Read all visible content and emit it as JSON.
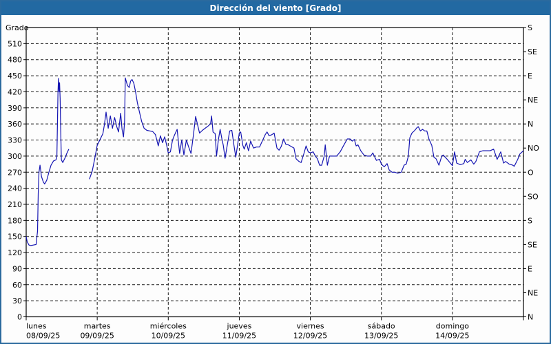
{
  "title": "Dirección del viento [Grado]",
  "colors": {
    "titlebar_bg": "#2269a2",
    "title_text": "#ffffff",
    "frame_border": "#2b6a9e",
    "plot_background": "#fdfdfd",
    "line_color": "#1515b2",
    "grid_color": "#1a1a1a",
    "axis_color": "#000000"
  },
  "chart_data": {
    "type": "line",
    "title": "Dirección del viento [Grado]",
    "ylabel": "Grado",
    "ylim": [
      0,
      540
    ],
    "x_range_days": [
      0,
      7
    ],
    "grid": true,
    "legend_position": "none",
    "left_axis_ticks": [
      0,
      30,
      60,
      90,
      120,
      150,
      180,
      210,
      240,
      270,
      300,
      330,
      360,
      390,
      420,
      450,
      480,
      510
    ],
    "right_axis_ticks": [
      {
        "deg": 540,
        "label": "S"
      },
      {
        "deg": 495,
        "label": "SE"
      },
      {
        "deg": 450,
        "label": "E"
      },
      {
        "deg": 405,
        "label": "NE"
      },
      {
        "deg": 360,
        "label": "N"
      },
      {
        "deg": 315,
        "label": "NO"
      },
      {
        "deg": 270,
        "label": "O"
      },
      {
        "deg": 225,
        "label": "SO"
      },
      {
        "deg": 180,
        "label": "S"
      },
      {
        "deg": 135,
        "label": "SE"
      },
      {
        "deg": 90,
        "label": "E"
      },
      {
        "deg": 45,
        "label": "NE"
      },
      {
        "deg": 0,
        "label": "N"
      }
    ],
    "x_days": [
      {
        "name": "lunes",
        "date": "08/09/25"
      },
      {
        "name": "martes",
        "date": "09/09/25"
      },
      {
        "name": "miércoles",
        "date": "10/09/25"
      },
      {
        "name": "jueves",
        "date": "11/09/25"
      },
      {
        "name": "viernes",
        "date": "12/09/25"
      },
      {
        "name": "sábado",
        "date": "13/09/25"
      },
      {
        "name": "domingo",
        "date": "14/09/25"
      }
    ],
    "series": [
      {
        "name": "Dirección del viento",
        "unit": "Grado",
        "color": "#1515b2",
        "points": [
          [
            0.0,
            150
          ],
          [
            0.015,
            140
          ],
          [
            0.04,
            134
          ],
          [
            0.065,
            133
          ],
          [
            0.1,
            134
          ],
          [
            0.14,
            135
          ],
          [
            0.16,
            160
          ],
          [
            0.17,
            230
          ],
          [
            0.18,
            270
          ],
          [
            0.195,
            283
          ],
          [
            0.215,
            262
          ],
          [
            0.24,
            252
          ],
          [
            0.26,
            248
          ],
          [
            0.29,
            255
          ],
          [
            0.32,
            270
          ],
          [
            0.35,
            283
          ],
          [
            0.385,
            291
          ],
          [
            0.42,
            293
          ],
          [
            0.432,
            300
          ],
          [
            0.44,
            360
          ],
          [
            0.448,
            420
          ],
          [
            0.455,
            445
          ],
          [
            0.463,
            420
          ],
          [
            0.47,
            437
          ],
          [
            0.478,
            408
          ],
          [
            0.487,
            345
          ],
          [
            0.495,
            293
          ],
          [
            0.515,
            288
          ],
          [
            0.545,
            296
          ],
          [
            0.575,
            306
          ],
          [
            0.6,
            313
          ],
          null,
          [
            0.89,
            257
          ],
          [
            0.93,
            272
          ],
          [
            0.965,
            295
          ],
          [
            1.0,
            320
          ],
          [
            1.04,
            331
          ],
          [
            1.08,
            342
          ],
          [
            1.1,
            358
          ],
          [
            1.125,
            382
          ],
          [
            1.155,
            352
          ],
          [
            1.185,
            375
          ],
          [
            1.215,
            352
          ],
          [
            1.245,
            372
          ],
          [
            1.275,
            355
          ],
          [
            1.3,
            345
          ],
          [
            1.33,
            380
          ],
          [
            1.35,
            350
          ],
          [
            1.37,
            336
          ],
          [
            1.385,
            365
          ],
          [
            1.395,
            446
          ],
          [
            1.425,
            432
          ],
          [
            1.45,
            428
          ],
          [
            1.47,
            440
          ],
          [
            1.49,
            443
          ],
          [
            1.515,
            436
          ],
          [
            1.54,
            420
          ],
          [
            1.565,
            400
          ],
          [
            1.59,
            385
          ],
          [
            1.625,
            365
          ],
          [
            1.66,
            352
          ],
          [
            1.7,
            348
          ],
          [
            1.74,
            347
          ],
          [
            1.78,
            346
          ],
          [
            1.82,
            340
          ],
          [
            1.86,
            319
          ],
          [
            1.89,
            338
          ],
          [
            1.92,
            325
          ],
          [
            1.95,
            336
          ],
          [
            1.975,
            322
          ],
          [
            2.0,
            306
          ],
          [
            2.03,
            308
          ],
          [
            2.06,
            330
          ],
          [
            2.09,
            340
          ],
          [
            2.125,
            350
          ],
          [
            2.16,
            305
          ],
          [
            2.19,
            330
          ],
          [
            2.22,
            302
          ],
          [
            2.255,
            330
          ],
          [
            2.285,
            318
          ],
          [
            2.32,
            305
          ],
          [
            2.355,
            340
          ],
          [
            2.385,
            374
          ],
          [
            2.41,
            360
          ],
          [
            2.44,
            343
          ],
          [
            2.48,
            348
          ],
          [
            2.52,
            352
          ],
          [
            2.56,
            356
          ],
          [
            2.595,
            360
          ],
          [
            2.61,
            375
          ],
          [
            2.63,
            345
          ],
          [
            2.66,
            342
          ],
          [
            2.68,
            300
          ],
          [
            2.705,
            330
          ],
          [
            2.73,
            350
          ],
          [
            2.755,
            332
          ],
          [
            2.775,
            320
          ],
          [
            2.8,
            296
          ],
          [
            2.83,
            320
          ],
          [
            2.865,
            347
          ],
          [
            2.895,
            348
          ],
          [
            2.925,
            320
          ],
          [
            2.95,
            298
          ],
          [
            2.975,
            320
          ],
          [
            3.0,
            343
          ],
          [
            3.02,
            345
          ],
          [
            3.05,
            320
          ],
          [
            3.07,
            313
          ],
          [
            3.1,
            325
          ],
          [
            3.13,
            310
          ],
          [
            3.16,
            328
          ],
          [
            3.2,
            315
          ],
          [
            3.24,
            317
          ],
          [
            3.285,
            317
          ],
          [
            3.33,
            330
          ],
          [
            3.365,
            340
          ],
          [
            3.39,
            345
          ],
          [
            3.42,
            338
          ],
          [
            3.46,
            340
          ],
          [
            3.49,
            343
          ],
          [
            3.53,
            315
          ],
          [
            3.56,
            311
          ],
          [
            3.59,
            318
          ],
          [
            3.625,
            332
          ],
          [
            3.655,
            322
          ],
          [
            3.69,
            321
          ],
          [
            3.73,
            318
          ],
          [
            3.77,
            315
          ],
          [
            3.8,
            295
          ],
          [
            3.84,
            290
          ],
          [
            3.87,
            288
          ],
          [
            3.91,
            305
          ],
          [
            3.94,
            319
          ],
          [
            3.97,
            308
          ],
          [
            4.0,
            306
          ],
          [
            4.04,
            308
          ],
          [
            4.07,
            300
          ],
          [
            4.1,
            295
          ],
          [
            4.13,
            283
          ],
          [
            4.16,
            283
          ],
          [
            4.195,
            300
          ],
          [
            4.21,
            321
          ],
          [
            4.24,
            283
          ],
          [
            4.27,
            300
          ],
          [
            4.32,
            300
          ],
          [
            4.37,
            300
          ],
          [
            4.42,
            308
          ],
          [
            4.47,
            320
          ],
          [
            4.52,
            332
          ],
          [
            4.56,
            332
          ],
          [
            4.59,
            328
          ],
          [
            4.62,
            331
          ],
          [
            4.645,
            319
          ],
          [
            4.67,
            321
          ],
          [
            4.71,
            310
          ],
          [
            4.755,
            302
          ],
          [
            4.805,
            300
          ],
          [
            4.85,
            300
          ],
          [
            4.88,
            306
          ],
          [
            4.93,
            292
          ],
          [
            4.975,
            294
          ],
          [
            5.0,
            285
          ],
          [
            5.04,
            280
          ],
          [
            5.08,
            286
          ],
          [
            5.11,
            274
          ],
          [
            5.15,
            270
          ],
          [
            5.19,
            270
          ],
          [
            5.23,
            268
          ],
          [
            5.28,
            270
          ],
          [
            5.32,
            283
          ],
          [
            5.35,
            285
          ],
          [
            5.38,
            300
          ],
          [
            5.4,
            334
          ],
          [
            5.43,
            343
          ],
          [
            5.47,
            348
          ],
          [
            5.5,
            353
          ],
          [
            5.52,
            355
          ],
          [
            5.55,
            347
          ],
          [
            5.58,
            350
          ],
          [
            5.61,
            347
          ],
          [
            5.64,
            347
          ],
          [
            5.67,
            332
          ],
          [
            5.71,
            320
          ],
          [
            5.74,
            298
          ],
          [
            5.77,
            295
          ],
          [
            5.81,
            283
          ],
          [
            5.85,
            300
          ],
          [
            5.87,
            302
          ],
          [
            5.92,
            295
          ],
          [
            5.97,
            287
          ],
          [
            6.0,
            282
          ],
          [
            6.03,
            308
          ],
          [
            6.06,
            287
          ],
          [
            6.11,
            284
          ],
          [
            6.16,
            286
          ],
          [
            6.18,
            294
          ],
          [
            6.21,
            288
          ],
          [
            6.26,
            293
          ],
          [
            6.3,
            285
          ],
          [
            6.33,
            290
          ],
          [
            6.38,
            308
          ],
          [
            6.43,
            310
          ],
          [
            6.48,
            310
          ],
          [
            6.53,
            310
          ],
          [
            6.58,
            313
          ],
          [
            6.63,
            294
          ],
          [
            6.68,
            308
          ],
          [
            6.72,
            287
          ],
          [
            6.75,
            290
          ],
          [
            6.8,
            285
          ],
          [
            6.85,
            283
          ],
          [
            6.87,
            281
          ],
          [
            6.92,
            294
          ],
          [
            6.95,
            304
          ],
          [
            7.0,
            310
          ]
        ]
      }
    ]
  }
}
